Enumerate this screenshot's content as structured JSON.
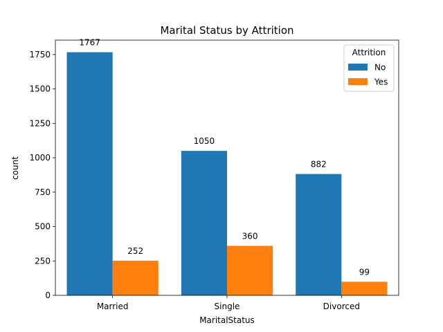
{
  "chart_data": {
    "type": "bar",
    "title": "Marital Status by Attrition",
    "xlabel": "MaritalStatus",
    "ylabel": "count",
    "categories": [
      "Married",
      "Single",
      "Divorced"
    ],
    "series": [
      {
        "name": "No",
        "values": [
          1767,
          1050,
          882
        ],
        "color": "#1f77b4"
      },
      {
        "name": "Yes",
        "values": [
          252,
          360,
          99
        ],
        "color": "#ff7f0e"
      }
    ],
    "ylim": [
      0,
      1855
    ],
    "yticks": [
      0,
      250,
      500,
      750,
      1000,
      1250,
      1500,
      1750
    ],
    "grid": false,
    "legend": {
      "title": "Attrition",
      "placement": "top-right"
    }
  }
}
